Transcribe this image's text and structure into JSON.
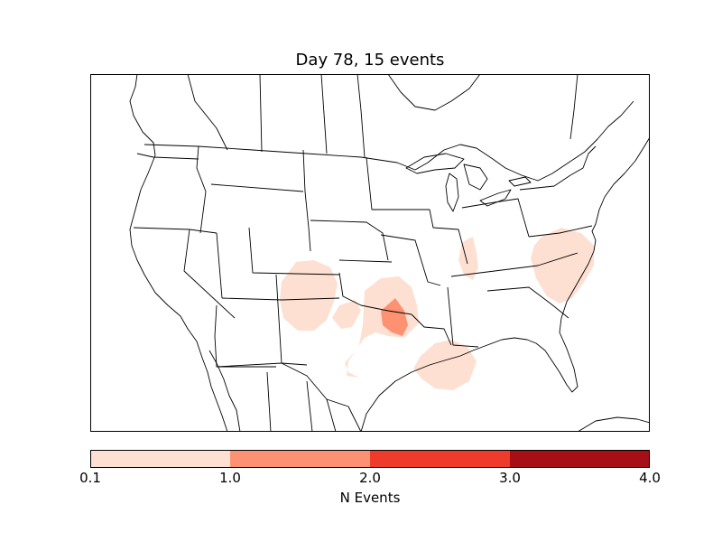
{
  "title": "Day 78, 15 events",
  "colorbar": {
    "label": "N Events",
    "ticks": [
      "0.1",
      "1.0",
      "2.0",
      "3.0",
      "4.0"
    ],
    "bins": [
      {
        "range": "0.1-1.0",
        "color": "#fee0d2"
      },
      {
        "range": "1.0-2.0",
        "color": "#fc9272"
      },
      {
        "range": "2.0-3.0",
        "color": "#ef3b2c"
      },
      {
        "range": "3.0-4.0",
        "color": "#a50f15"
      }
    ]
  },
  "map": {
    "region": "Contiguous United States with southern Canada and northern Mexico",
    "boundaries": "state and country outlines, coastlines, lakes"
  }
}
